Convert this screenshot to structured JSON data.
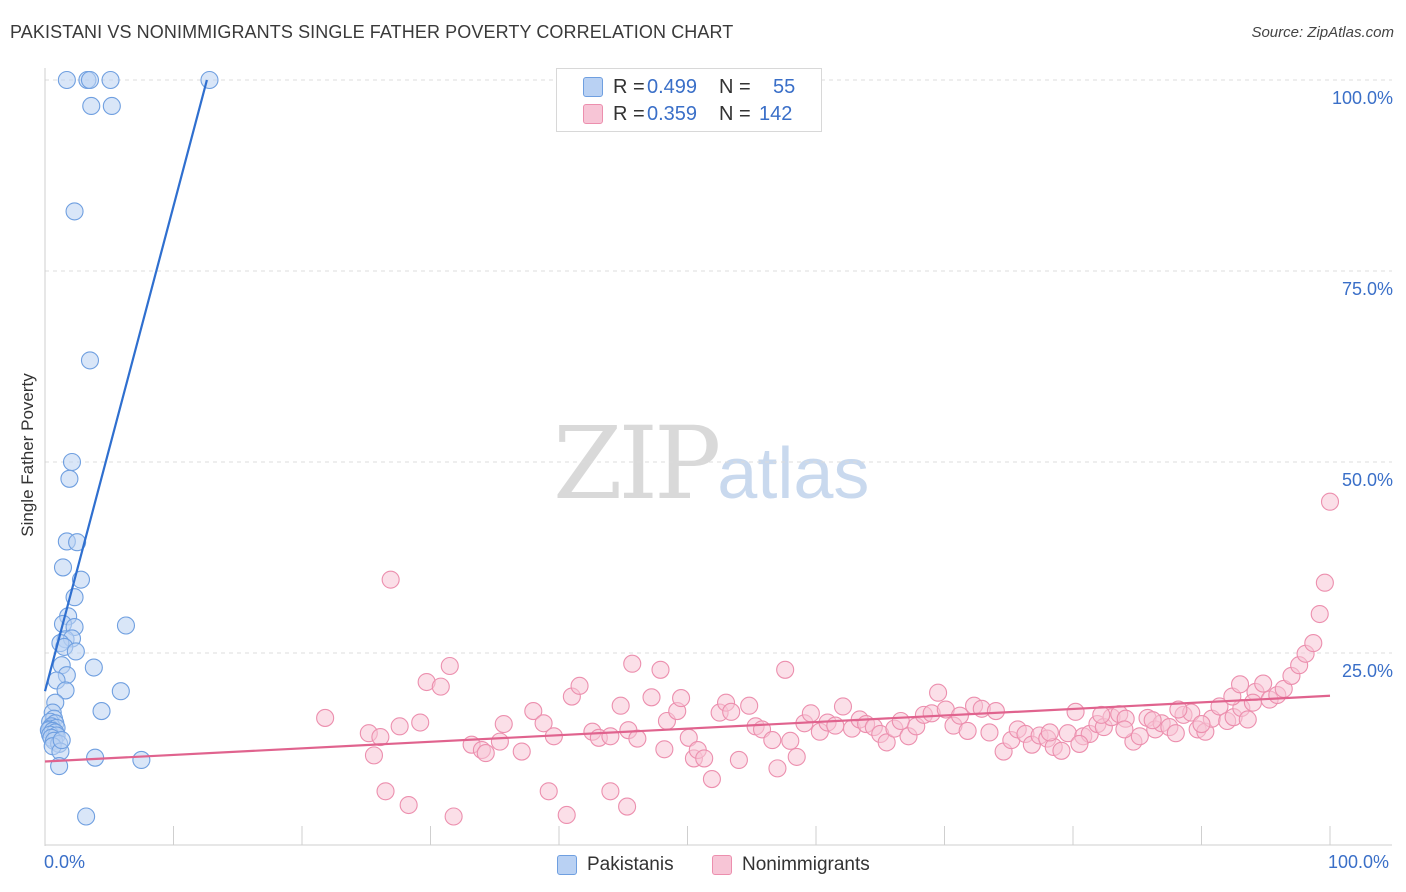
{
  "header": {
    "title": "PAKISTANI VS NONIMMIGRANTS SINGLE FATHER POVERTY CORRELATION CHART",
    "source": "Source: ZipAtlas.com"
  },
  "watermark": {
    "zip": "ZIP",
    "atlas": "atlas"
  },
  "stats_legend": {
    "rows": [
      {
        "r_label": "R = ",
        "r_value": "0.499",
        "n_label": "N = ",
        "n_value": "55"
      },
      {
        "r_label": "R = ",
        "r_value": "0.359",
        "n_label": "N = ",
        "n_value": "142"
      }
    ]
  },
  "chart_data": {
    "type": "scatter",
    "title": "PAKISTANI VS NONIMMIGRANTS SINGLE FATHER POVERTY CORRELATION CHART",
    "xlabel": "",
    "ylabel": "Single Father Poverty",
    "xlim": [
      0,
      100
    ],
    "ylim": [
      0,
      100
    ],
    "x_tick_labels": [
      "0.0%",
      "100.0%"
    ],
    "y_tick_labels": [
      {
        "value": 100,
        "label": "100.0%"
      },
      {
        "value": 75,
        "label": "75.0%"
      },
      {
        "value": 50,
        "label": "50.0%"
      },
      {
        "value": 25,
        "label": "25.0%"
      }
    ],
    "grid": true,
    "legend_position": "bottom-center",
    "series": [
      {
        "name": "Pakistanis",
        "color": "#6f9fe0",
        "fill": "#b9d1f3",
        "line_color": "#2f6fcf",
        "r": 0.499,
        "n": 55,
        "trend": {
          "x0": 0.0,
          "y0": 20.0,
          "x1": 12.6,
          "y1": 100.0
        },
        "points": [
          [
            1.7,
            100
          ],
          [
            3.3,
            100
          ],
          [
            3.5,
            100
          ],
          [
            5.1,
            100
          ],
          [
            12.8,
            100
          ],
          [
            3.6,
            96.6
          ],
          [
            5.2,
            96.6
          ],
          [
            2.3,
            82.8
          ],
          [
            3.5,
            63.3
          ],
          [
            2.1,
            50.0
          ],
          [
            1.9,
            47.8
          ],
          [
            1.7,
            39.6
          ],
          [
            2.5,
            39.5
          ],
          [
            1.4,
            36.2
          ],
          [
            2.8,
            34.6
          ],
          [
            2.3,
            32.3
          ],
          [
            1.8,
            29.8
          ],
          [
            1.4,
            28.8
          ],
          [
            2.3,
            28.4
          ],
          [
            6.3,
            28.6
          ],
          [
            1.6,
            26.8
          ],
          [
            2.1,
            26.9
          ],
          [
            1.2,
            26.3
          ],
          [
            1.5,
            25.8
          ],
          [
            2.4,
            25.2
          ],
          [
            1.3,
            23.4
          ],
          [
            3.8,
            23.1
          ],
          [
            1.7,
            22.1
          ],
          [
            0.9,
            21.4
          ],
          [
            1.6,
            20.1
          ],
          [
            5.9,
            20.0
          ],
          [
            0.8,
            18.5
          ],
          [
            4.4,
            17.4
          ],
          [
            0.6,
            17.2
          ],
          [
            0.7,
            16.4
          ],
          [
            0.4,
            16.0
          ],
          [
            0.8,
            15.8
          ],
          [
            0.5,
            15.4
          ],
          [
            0.4,
            15.1
          ],
          [
            0.9,
            15.2
          ],
          [
            0.3,
            14.9
          ],
          [
            0.6,
            14.8
          ],
          [
            0.8,
            14.6
          ],
          [
            0.4,
            14.3
          ],
          [
            0.9,
            14.2
          ],
          [
            0.5,
            13.9
          ],
          [
            0.7,
            13.5
          ],
          [
            1.1,
            13.1
          ],
          [
            0.6,
            12.8
          ],
          [
            1.2,
            12.1
          ],
          [
            3.9,
            11.3
          ],
          [
            7.5,
            11.0
          ],
          [
            1.1,
            10.2
          ],
          [
            1.3,
            13.6
          ],
          [
            3.2,
            3.6
          ]
        ]
      },
      {
        "name": "Nonimmigrants",
        "color": "#ec8fae",
        "fill": "#f7c5d6",
        "line_color": "#e0638e",
        "r": 0.359,
        "n": 142,
        "trend": {
          "x0": 0.0,
          "y0": 10.8,
          "x1": 100.0,
          "y1": 19.4
        },
        "points": [
          [
            21.8,
            16.5
          ],
          [
            25.2,
            14.5
          ],
          [
            25.6,
            11.6
          ],
          [
            26.1,
            14.0
          ],
          [
            26.5,
            6.9
          ],
          [
            26.9,
            34.6
          ],
          [
            27.6,
            15.4
          ],
          [
            28.3,
            5.1
          ],
          [
            29.2,
            15.9
          ],
          [
            29.7,
            21.2
          ],
          [
            30.8,
            20.6
          ],
          [
            31.5,
            23.3
          ],
          [
            31.8,
            3.6
          ],
          [
            33.2,
            13.0
          ],
          [
            34.0,
            12.3
          ],
          [
            34.3,
            11.9
          ],
          [
            35.4,
            13.4
          ],
          [
            35.7,
            15.7
          ],
          [
            37.1,
            12.1
          ],
          [
            38.0,
            17.4
          ],
          [
            38.8,
            15.8
          ],
          [
            39.2,
            6.9
          ],
          [
            39.6,
            14.1
          ],
          [
            40.6,
            3.8
          ],
          [
            41.0,
            19.3
          ],
          [
            41.6,
            20.7
          ],
          [
            42.6,
            14.7
          ],
          [
            43.1,
            13.9
          ],
          [
            44.0,
            14.1
          ],
          [
            44.0,
            6.9
          ],
          [
            44.8,
            18.1
          ],
          [
            45.3,
            4.9
          ],
          [
            45.4,
            14.9
          ],
          [
            45.7,
            23.6
          ],
          [
            46.1,
            13.8
          ],
          [
            47.2,
            19.2
          ],
          [
            47.9,
            22.8
          ],
          [
            48.2,
            12.4
          ],
          [
            48.4,
            16.1
          ],
          [
            49.2,
            17.4
          ],
          [
            49.5,
            19.1
          ],
          [
            50.1,
            13.9
          ],
          [
            50.5,
            11.2
          ],
          [
            50.8,
            12.3
          ],
          [
            51.3,
            11.2
          ],
          [
            51.9,
            8.5
          ],
          [
            52.5,
            17.2
          ],
          [
            53.0,
            18.5
          ],
          [
            53.4,
            17.3
          ],
          [
            54.0,
            11.0
          ],
          [
            54.8,
            18.1
          ],
          [
            55.3,
            15.4
          ],
          [
            55.8,
            15.0
          ],
          [
            56.6,
            13.6
          ],
          [
            57.0,
            9.9
          ],
          [
            57.6,
            22.8
          ],
          [
            58.0,
            13.5
          ],
          [
            58.5,
            11.4
          ],
          [
            59.1,
            15.8
          ],
          [
            59.6,
            17.1
          ],
          [
            60.3,
            14.7
          ],
          [
            60.9,
            15.9
          ],
          [
            61.5,
            15.5
          ],
          [
            62.1,
            18.0
          ],
          [
            62.8,
            15.1
          ],
          [
            63.4,
            16.3
          ],
          [
            63.9,
            15.7
          ],
          [
            64.5,
            15.3
          ],
          [
            65.0,
            14.4
          ],
          [
            65.5,
            13.3
          ],
          [
            66.1,
            15.1
          ],
          [
            66.6,
            16.1
          ],
          [
            67.2,
            14.1
          ],
          [
            67.8,
            15.4
          ],
          [
            68.4,
            16.9
          ],
          [
            69.0,
            17.1
          ],
          [
            69.5,
            19.8
          ],
          [
            70.1,
            17.6
          ],
          [
            70.7,
            15.5
          ],
          [
            71.2,
            16.8
          ],
          [
            71.8,
            14.8
          ],
          [
            72.3,
            18.1
          ],
          [
            72.9,
            17.7
          ],
          [
            73.5,
            14.6
          ],
          [
            74.0,
            17.4
          ],
          [
            74.6,
            12.1
          ],
          [
            75.2,
            13.6
          ],
          [
            75.7,
            15.0
          ],
          [
            76.3,
            14.4
          ],
          [
            76.8,
            13.0
          ],
          [
            77.4,
            14.2
          ],
          [
            78.0,
            13.8
          ],
          [
            78.5,
            12.7
          ],
          [
            79.1,
            12.2
          ],
          [
            79.6,
            14.5
          ],
          [
            80.2,
            17.3
          ],
          [
            80.8,
            14.1
          ],
          [
            81.3,
            14.4
          ],
          [
            81.9,
            15.7
          ],
          [
            82.4,
            15.3
          ],
          [
            83.0,
            16.6
          ],
          [
            83.6,
            17.0
          ],
          [
            84.1,
            16.4
          ],
          [
            84.7,
            13.4
          ],
          [
            85.2,
            14.1
          ],
          [
            85.8,
            16.5
          ],
          [
            86.4,
            15.0
          ],
          [
            86.9,
            15.8
          ],
          [
            87.5,
            15.3
          ],
          [
            88.0,
            14.5
          ],
          [
            88.6,
            16.9
          ],
          [
            89.2,
            17.2
          ],
          [
            89.7,
            15.0
          ],
          [
            90.3,
            14.7
          ],
          [
            90.8,
            16.4
          ],
          [
            91.4,
            18.0
          ],
          [
            92.0,
            16.1
          ],
          [
            92.5,
            16.6
          ],
          [
            93.1,
            17.8
          ],
          [
            93.6,
            16.3
          ],
          [
            94.2,
            19.9
          ],
          [
            94.8,
            21.0
          ],
          [
            95.3,
            18.9
          ],
          [
            95.9,
            19.5
          ],
          [
            96.4,
            20.3
          ],
          [
            97.0,
            22.0
          ],
          [
            97.6,
            23.4
          ],
          [
            98.1,
            24.9
          ],
          [
            98.7,
            26.3
          ],
          [
            99.2,
            30.1
          ],
          [
            99.6,
            34.2
          ],
          [
            100.0,
            44.8
          ],
          [
            92.4,
            19.3
          ],
          [
            93.0,
            20.9
          ],
          [
            94.0,
            18.5
          ],
          [
            90.0,
            15.7
          ],
          [
            88.2,
            17.6
          ],
          [
            86.2,
            16.2
          ],
          [
            84.0,
            15.0
          ],
          [
            82.2,
            16.9
          ],
          [
            80.5,
            13.1
          ],
          [
            78.2,
            14.6
          ]
        ]
      }
    ]
  }
}
